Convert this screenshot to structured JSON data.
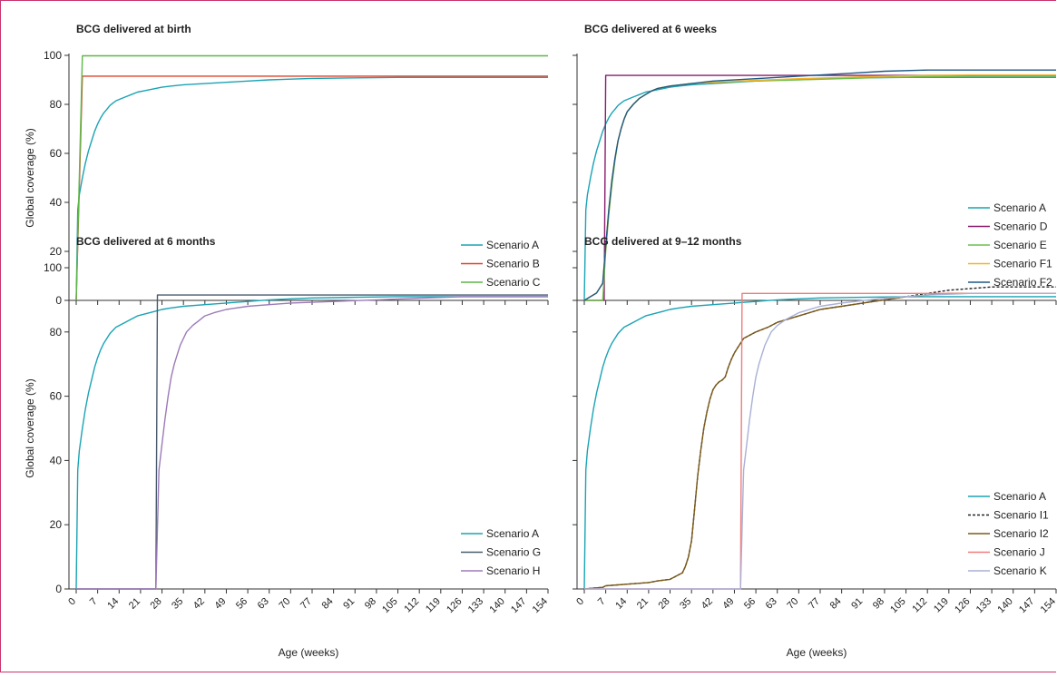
{
  "axes_common": {
    "ylabel": "Global coverage (%)",
    "xlabel": "Age (weeks)",
    "yticks": [
      0,
      20,
      40,
      60,
      80,
      100
    ],
    "xticks": [
      0,
      7,
      14,
      21,
      28,
      35,
      42,
      49,
      56,
      63,
      70,
      77,
      84,
      91,
      98,
      105,
      112,
      119,
      126,
      133,
      140,
      147,
      154
    ]
  },
  "colors": {
    "A": "#1aa3b4",
    "B": "#e0402a",
    "C": "#5cb848",
    "D": "#8a1a6e",
    "E": "#6cbf4c",
    "F1": "#f5b22a",
    "F2": "#1f5a85",
    "G": "#4a5a6e",
    "H": "#9b7ab8",
    "I1": "#222222",
    "I2": "#7a5a1a",
    "J": "#ef7c7c",
    "K": "#a8b0d6"
  },
  "chart_data": [
    {
      "type": "line",
      "title": "BCG delivered at birth",
      "ylabel": "Global coverage (%)",
      "xlabel": "",
      "xlim": [
        0,
        154
      ],
      "ylim": [
        0,
        100
      ],
      "legend": "bottom-right",
      "series": [
        {
          "name": "Scenario A",
          "key": "A",
          "x": [
            0,
            0.5,
            1,
            2,
            3,
            4,
            5,
            6,
            7,
            8,
            9,
            10,
            11,
            12,
            13,
            14,
            16,
            18,
            20,
            22,
            24,
            26,
            28,
            31,
            35,
            42,
            49,
            56,
            63,
            70,
            77,
            91,
            105,
            119,
            133,
            147,
            154
          ],
          "y": [
            0,
            37,
            43,
            50,
            56,
            61,
            65,
            69,
            72,
            74.5,
            76.5,
            78,
            79.5,
            80.5,
            81.5,
            82,
            83,
            84,
            85,
            85.5,
            86,
            86.5,
            87,
            87.5,
            88,
            88.5,
            89,
            89.5,
            90,
            90.3,
            90.6,
            90.8,
            91,
            91,
            91,
            91,
            91
          ]
        },
        {
          "name": "Scenario B",
          "key": "B",
          "x": [
            0,
            2,
            154
          ],
          "y": [
            0,
            91.5,
            91.5
          ]
        },
        {
          "name": "Scenario C",
          "key": "C",
          "x": [
            0,
            2,
            154
          ],
          "y": [
            0,
            99.8,
            99.8
          ]
        }
      ]
    },
    {
      "type": "line",
      "title": "BCG delivered at 6 weeks",
      "ylabel": "",
      "xlabel": "",
      "xlim": [
        0,
        154
      ],
      "ylim": [
        0,
        100
      ],
      "legend": "bottom-right",
      "series": [
        {
          "name": "Scenario A",
          "key": "A",
          "x": [
            0,
            0.5,
            1,
            2,
            3,
            4,
            5,
            6,
            7,
            8,
            9,
            10,
            11,
            12,
            13,
            14,
            16,
            18,
            20,
            22,
            24,
            26,
            28,
            31,
            35,
            42,
            49,
            56,
            63,
            70,
            77,
            91,
            105,
            119,
            133,
            147,
            154
          ],
          "y": [
            0,
            37,
            43,
            50,
            56,
            61,
            65,
            69,
            72,
            74.5,
            76.5,
            78,
            79.5,
            80.5,
            81.5,
            82,
            83,
            84,
            85,
            85.5,
            86,
            86.5,
            87,
            87.5,
            88,
            88.5,
            89,
            89.5,
            90,
            90.3,
            90.6,
            90.8,
            91,
            91,
            91,
            91,
            91
          ]
        },
        {
          "name": "Scenario D",
          "key": "D",
          "x": [
            0,
            6,
            6.5,
            7,
            154
          ],
          "y": [
            0,
            0,
            0,
            91.8,
            91.8
          ]
        },
        {
          "name": "Scenario E",
          "key": "E",
          "x": [
            0,
            6,
            7,
            8,
            9,
            10,
            11,
            12,
            13,
            14,
            16,
            18,
            20,
            22,
            24,
            28,
            35,
            42,
            56,
            70,
            84,
            98,
            112,
            126,
            154
          ],
          "y": [
            0,
            0,
            20,
            35,
            47,
            57,
            65,
            70,
            74,
            77,
            80,
            82.5,
            84,
            85.5,
            86.5,
            87.5,
            88.5,
            89,
            89.5,
            90,
            90.5,
            91,
            91.3,
            91.5,
            91.5
          ]
        },
        {
          "name": "Scenario F1",
          "key": "F1",
          "x": [
            0,
            2,
            4,
            5,
            6,
            7,
            8,
            9,
            10,
            11,
            12,
            13,
            14,
            16,
            18,
            20,
            22,
            24,
            28,
            35,
            42,
            56,
            70,
            84,
            98,
            112,
            126,
            154
          ],
          "y": [
            0,
            1.5,
            3,
            5,
            7,
            22,
            37,
            49,
            58,
            65,
            70,
            74,
            77,
            80,
            82.5,
            84,
            85.5,
            86.5,
            87.5,
            88.5,
            89,
            89.8,
            90.5,
            91,
            91.5,
            91.8,
            92,
            92
          ]
        },
        {
          "name": "Scenario F2",
          "key": "F2",
          "x": [
            0,
            2,
            4,
            5,
            6,
            7,
            8,
            9,
            10,
            11,
            12,
            13,
            14,
            16,
            18,
            20,
            22,
            24,
            28,
            35,
            42,
            56,
            70,
            84,
            98,
            112,
            126,
            154
          ],
          "y": [
            0,
            1.5,
            3,
            5,
            7,
            22,
            37,
            49,
            58,
            65,
            70,
            74,
            77,
            80,
            82.5,
            84,
            85.5,
            86.5,
            87.5,
            88.5,
            89.5,
            90.5,
            91.5,
            92.5,
            93.5,
            94,
            94,
            94
          ]
        }
      ]
    },
    {
      "type": "line",
      "title": "BCG delivered at 6 months",
      "ylabel": "Global coverage (%)",
      "xlabel": "Age (weeks)",
      "xlim": [
        0,
        154
      ],
      "ylim": [
        0,
        100
      ],
      "legend": "bottom-right",
      "series": [
        {
          "name": "Scenario A",
          "key": "A",
          "x": [
            0,
            0.5,
            1,
            2,
            3,
            4,
            5,
            6,
            7,
            8,
            9,
            10,
            11,
            12,
            13,
            14,
            16,
            18,
            20,
            22,
            24,
            26,
            28,
            31,
            35,
            42,
            49,
            56,
            63,
            70,
            77,
            91,
            105,
            119,
            133,
            147,
            154
          ],
          "y": [
            0,
            37,
            43,
            50,
            56,
            61,
            65,
            69,
            72,
            74.5,
            76.5,
            78,
            79.5,
            80.5,
            81.5,
            82,
            83,
            84,
            85,
            85.5,
            86,
            86.5,
            87,
            87.5,
            88,
            88.5,
            89,
            89.5,
            90,
            90.3,
            90.6,
            90.8,
            91,
            91,
            91,
            91,
            91
          ]
        },
        {
          "name": "Scenario G",
          "key": "G",
          "x": [
            0,
            26,
            26.5,
            154
          ],
          "y": [
            0,
            0,
            91.5,
            91.5
          ]
        },
        {
          "name": "Scenario H",
          "key": "H",
          "x": [
            0,
            26,
            27,
            28,
            29,
            30,
            31,
            32,
            33,
            34,
            35,
            36,
            38,
            40,
            42,
            45,
            49,
            56,
            63,
            70,
            84,
            98,
            112,
            126,
            140,
            154
          ],
          "y": [
            0,
            0,
            37,
            45,
            53,
            60,
            66,
            70,
            73,
            76,
            78,
            80,
            82,
            83.5,
            85,
            86,
            87,
            88,
            88.5,
            89,
            89.5,
            90,
            90.5,
            91,
            91,
            91
          ]
        }
      ]
    },
    {
      "type": "line",
      "title": "BCG delivered at 9–12 months",
      "ylabel": "",
      "xlabel": "Age (weeks)",
      "xlim": [
        0,
        154
      ],
      "ylim": [
        0,
        100
      ],
      "legend": "bottom-right",
      "series": [
        {
          "name": "Scenario A",
          "key": "A",
          "x": [
            0,
            0.5,
            1,
            2,
            3,
            4,
            5,
            6,
            7,
            8,
            9,
            10,
            11,
            12,
            13,
            14,
            16,
            18,
            20,
            22,
            24,
            26,
            28,
            31,
            35,
            42,
            49,
            56,
            63,
            70,
            77,
            91,
            105,
            119,
            133,
            147,
            154
          ],
          "y": [
            0,
            37,
            43,
            50,
            56,
            61,
            65,
            69,
            72,
            74.5,
            76.5,
            78,
            79.5,
            80.5,
            81.5,
            82,
            83,
            84,
            85,
            85.5,
            86,
            86.5,
            87,
            87.5,
            88,
            88.5,
            89,
            89.5,
            90,
            90.3,
            90.6,
            90.8,
            91,
            91,
            91,
            91,
            91
          ]
        },
        {
          "name": "Scenario I1",
          "key": "I1",
          "dashed": true,
          "x": [
            0,
            6,
            7,
            14,
            21,
            24,
            28,
            30,
            32,
            33,
            34,
            35,
            36,
            37,
            38,
            39,
            40,
            41,
            42,
            43,
            44,
            45,
            46,
            47,
            48,
            49,
            50,
            51,
            52,
            56,
            60,
            63,
            70,
            77,
            84,
            91,
            98,
            105,
            112,
            119,
            126,
            133,
            140,
            154
          ],
          "y": [
            0,
            0.5,
            1,
            1.5,
            2,
            2.5,
            3,
            4,
            5,
            7,
            10,
            15,
            25,
            35,
            43,
            50,
            55,
            59,
            62,
            63.5,
            64.5,
            65,
            66,
            69,
            71.5,
            73.5,
            75,
            76.5,
            78,
            80,
            81.5,
            83,
            85,
            87,
            88,
            89,
            90,
            91,
            92,
            93,
            93.5,
            94,
            94,
            94
          ]
        },
        {
          "name": "Scenario I2",
          "key": "I2",
          "x": [
            0,
            6,
            7,
            14,
            21,
            24,
            28,
            30,
            32,
            33,
            34,
            35,
            36,
            37,
            38,
            39,
            40,
            41,
            42,
            43,
            44,
            45,
            46,
            47,
            48,
            49,
            50,
            51,
            52,
            56,
            60,
            63,
            70,
            77,
            84,
            91,
            98,
            105,
            112,
            119,
            126,
            133,
            140,
            154
          ],
          "y": [
            0,
            0.5,
            1,
            1.5,
            2,
            2.5,
            3,
            4,
            5,
            7,
            10,
            15,
            25,
            35,
            43,
            50,
            55,
            59,
            62,
            63.5,
            64.5,
            65,
            66,
            69,
            71.5,
            73.5,
            75,
            76.5,
            78,
            80,
            81.5,
            83,
            85,
            87,
            88,
            89,
            90,
            91,
            91.5,
            92,
            92,
            92,
            92,
            92
          ]
        },
        {
          "name": "Scenario J",
          "key": "J",
          "x": [
            0,
            51,
            51.5,
            154
          ],
          "y": [
            0,
            0,
            92,
            92
          ]
        },
        {
          "name": "Scenario K",
          "key": "K",
          "x": [
            0,
            51,
            52,
            53,
            54,
            55,
            56,
            57,
            58,
            59,
            60,
            61,
            63,
            66,
            70,
            77,
            84,
            98,
            112,
            126,
            140,
            154
          ],
          "y": [
            0,
            0,
            37,
            45,
            53,
            60,
            66,
            70,
            73,
            76,
            78,
            80,
            82,
            84,
            86,
            88,
            89,
            90.5,
            91.5,
            92,
            92,
            92
          ]
        }
      ]
    }
  ]
}
